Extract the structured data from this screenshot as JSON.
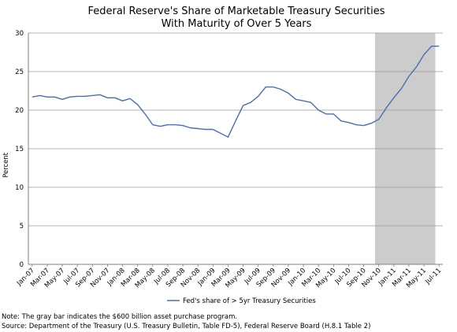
{
  "chart_data": {
    "type": "line",
    "title": "Federal Reserve's Share of Marketable Treasury Securities",
    "subtitle": "With Maturity of Over 5 Years",
    "ylabel": "Percent",
    "xlabel": "",
    "ylim": [
      0,
      30
    ],
    "yticks": [
      0,
      5,
      10,
      15,
      20,
      25,
      30
    ],
    "grid": "horizontal",
    "legend_position": "bottom",
    "x_start": "Jan-07",
    "x_end": "Jul-11",
    "x_tick_labels": [
      "Jan-07",
      "Mar-07",
      "May-07",
      "Jul-07",
      "Sep-07",
      "Nov-07",
      "Jan-08",
      "Mar-08",
      "May-08",
      "Jul-08",
      "Sep-08",
      "Nov-08",
      "Jan-09",
      "Mar-09",
      "May-09",
      "Jul-09",
      "Sep-09",
      "Nov-09",
      "Jan-10",
      "Mar-10",
      "May-10",
      "Jul-10",
      "Sep-10",
      "Nov-10",
      "Jan-11",
      "Mar-11",
      "May-11",
      "Jul-11"
    ],
    "shaded_region": {
      "from": "Nov-10",
      "to": "Jun-11",
      "color": "#cccccc"
    },
    "series": [
      {
        "name": "Fed's share of > 5yr Treasury Securities",
        "color": "#4a6db5",
        "x": [
          "Jan-07",
          "Feb-07",
          "Mar-07",
          "Apr-07",
          "May-07",
          "Jun-07",
          "Jul-07",
          "Aug-07",
          "Sep-07",
          "Oct-07",
          "Nov-07",
          "Dec-07",
          "Jan-08",
          "Feb-08",
          "Mar-08",
          "Apr-08",
          "May-08",
          "Jun-08",
          "Jul-08",
          "Aug-08",
          "Sep-08",
          "Oct-08",
          "Nov-08",
          "Dec-08",
          "Jan-09",
          "Feb-09",
          "Mar-09",
          "Apr-09",
          "May-09",
          "Jun-09",
          "Jul-09",
          "Aug-09",
          "Sep-09",
          "Oct-09",
          "Nov-09",
          "Dec-09",
          "Jan-10",
          "Feb-10",
          "Mar-10",
          "Apr-10",
          "May-10",
          "Jun-10",
          "Jul-10",
          "Aug-10",
          "Sep-10",
          "Oct-10",
          "Nov-10",
          "Dec-10",
          "Jan-11",
          "Feb-11",
          "Mar-11",
          "Apr-11",
          "May-11",
          "Jun-11",
          "Jul-11"
        ],
        "values": [
          21.7,
          21.9,
          21.7,
          21.7,
          21.4,
          21.7,
          21.8,
          21.8,
          21.9,
          22.0,
          21.6,
          21.6,
          21.2,
          21.5,
          20.7,
          19.5,
          18.1,
          17.9,
          18.1,
          18.1,
          18.0,
          17.7,
          17.6,
          17.5,
          17.5,
          17.0,
          16.5,
          18.6,
          20.6,
          21.0,
          21.8,
          23.0,
          23.0,
          22.7,
          22.2,
          21.4,
          21.2,
          21.0,
          20.0,
          19.5,
          19.5,
          18.6,
          18.4,
          18.1,
          18.0,
          18.3,
          18.8,
          20.3,
          21.6,
          22.8,
          24.4,
          25.6,
          27.2,
          28.3,
          28.3
        ]
      }
    ]
  },
  "notes": [
    "Note: The gray bar indicates the $600 billion asset purchase program.",
    "Source: Department of the Treasury (U.S. Treasury Bulletin, Table FD-5), Federal Reserve Board (H.8.1 Table 2)"
  ]
}
